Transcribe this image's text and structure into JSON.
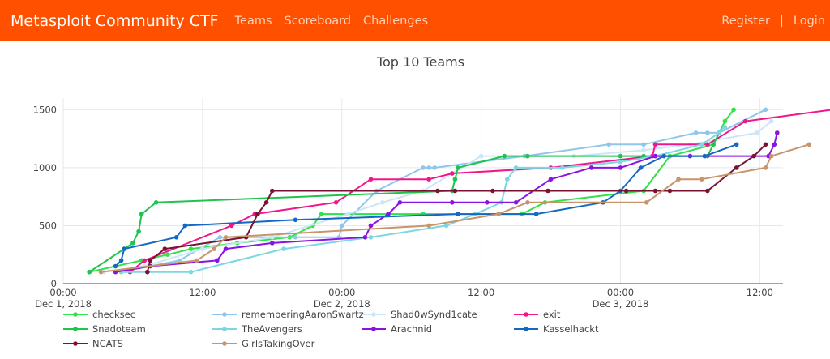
{
  "navbar": {
    "brand": "Metasploit Community CTF",
    "links": [
      "Teams",
      "Scoreboard",
      "Challenges"
    ],
    "right_links": [
      "Register",
      "Login"
    ],
    "separator": "|"
  },
  "colors": {
    "navbar_bg": "#ff5000",
    "brand": "#ffffff",
    "nav_link": "#ffd2b8"
  },
  "chart_data": {
    "type": "line",
    "title": "Top 10 Teams",
    "xlabel": "",
    "ylabel": "",
    "x_axis": {
      "range": [
        "2018-12-01T00:00",
        "2018-12-03T14:00"
      ],
      "ticks": [
        {
          "value": "2018-12-01T00:00",
          "label": "00:00",
          "sublabel": "Dec 1, 2018"
        },
        {
          "value": "2018-12-01T12:00",
          "label": "12:00",
          "sublabel": ""
        },
        {
          "value": "2018-12-02T00:00",
          "label": "00:00",
          "sublabel": "Dec 2, 2018"
        },
        {
          "value": "2018-12-02T12:00",
          "label": "12:00",
          "sublabel": ""
        },
        {
          "value": "2018-12-03T00:00",
          "label": "00:00",
          "sublabel": "Dec 3, 2018"
        },
        {
          "value": "2018-12-03T12:00",
          "label": "12:00",
          "sublabel": ""
        }
      ]
    },
    "y_axis": {
      "range": [
        0,
        1600
      ],
      "ticks": [
        0,
        500,
        1000,
        1500
      ]
    },
    "grid": true,
    "legend": {
      "placement": "bottom",
      "columns": 4
    },
    "series": [
      {
        "name": "checksec",
        "color": "#2fe24a",
        "points": [
          [
            "2018-12-01T02:15",
            100
          ],
          [
            "2018-12-01T06:45",
            200
          ],
          [
            "2018-12-01T09:00",
            250
          ],
          [
            "2018-12-01T11:00",
            300
          ],
          [
            "2018-12-01T15:00",
            350
          ],
          [
            "2018-12-01T19:30",
            400
          ],
          [
            "2018-12-01T21:30",
            500
          ],
          [
            "2018-12-01T22:15",
            600
          ],
          [
            "2018-12-02T04:00",
            600
          ],
          [
            "2018-12-02T07:00",
            600
          ],
          [
            "2018-12-02T15:30",
            600
          ],
          [
            "2018-12-02T17:30",
            700
          ],
          [
            "2018-12-03T02:00",
            800
          ],
          [
            "2018-12-03T04:15",
            1100
          ],
          [
            "2018-12-03T08:00",
            1200
          ],
          [
            "2018-12-03T08:30",
            1300
          ],
          [
            "2018-12-03T09:00",
            1400
          ],
          [
            "2018-12-03T09:45",
            1500
          ]
        ]
      },
      {
        "name": "rememberingAaronSwartz",
        "color": "#8fc7ec",
        "points": [
          [
            "2018-12-01T05:00",
            100
          ],
          [
            "2018-12-01T10:00",
            200
          ],
          [
            "2018-12-01T13:30",
            400
          ],
          [
            "2018-12-01T20:00",
            400
          ],
          [
            "2018-12-01T23:45",
            400
          ],
          [
            "2018-12-02T00:00",
            500
          ],
          [
            "2018-12-02T03:00",
            800
          ],
          [
            "2018-12-02T07:00",
            1000
          ],
          [
            "2018-12-02T07:30",
            1000
          ],
          [
            "2018-12-02T08:00",
            1000
          ],
          [
            "2018-12-02T15:45",
            1100
          ],
          [
            "2018-12-02T23:00",
            1200
          ],
          [
            "2018-12-03T02:00",
            1200
          ],
          [
            "2018-12-03T06:30",
            1300
          ],
          [
            "2018-12-03T07:30",
            1300
          ],
          [
            "2018-12-03T08:30",
            1300
          ],
          [
            "2018-12-03T12:30",
            1500
          ]
        ]
      },
      {
        "name": "Shad0wSynd1cate",
        "color": "#cbe6f6",
        "points": [
          [
            "2018-12-01T03:30",
            100
          ],
          [
            "2018-12-01T07:00",
            150
          ],
          [
            "2018-12-01T12:00",
            300
          ],
          [
            "2018-12-01T18:00",
            400
          ],
          [
            "2018-12-02T00:30",
            600
          ],
          [
            "2018-12-02T03:30",
            700
          ],
          [
            "2018-12-02T07:00",
            800
          ],
          [
            "2018-12-02T12:00",
            1100
          ],
          [
            "2018-12-02T16:00",
            1100
          ],
          [
            "2018-12-02T20:00",
            1100
          ],
          [
            "2018-12-03T02:00",
            1150
          ],
          [
            "2018-12-03T06:00",
            1200
          ],
          [
            "2018-12-03T11:45",
            1300
          ],
          [
            "2018-12-03T13:00",
            1400
          ]
        ]
      },
      {
        "name": "exit",
        "color": "#f0168c",
        "points": [
          [
            "2018-12-01T05:45",
            100
          ],
          [
            "2018-12-01T07:00",
            200
          ],
          [
            "2018-12-01T14:30",
            500
          ],
          [
            "2018-12-01T16:30",
            600
          ],
          [
            "2018-12-01T23:30",
            700
          ],
          [
            "2018-12-02T02:30",
            900
          ],
          [
            "2018-12-02T07:30",
            900
          ],
          [
            "2018-12-02T09:30",
            950
          ],
          [
            "2018-12-02T18:00",
            1000
          ],
          [
            "2018-12-03T02:45",
            1100
          ],
          [
            "2018-12-03T03:00",
            1200
          ],
          [
            "2018-12-03T07:30",
            1200
          ],
          [
            "2018-12-03T10:45",
            1400
          ],
          [
            "2018-12-03T18:15",
            1500
          ]
        ]
      },
      {
        "name": "Snadoteam",
        "color": "#1fc34e",
        "points": [
          [
            "2018-12-01T02:15",
            100
          ],
          [
            "2018-12-01T06:00",
            350
          ],
          [
            "2018-12-01T06:30",
            450
          ],
          [
            "2018-12-01T06:45",
            600
          ],
          [
            "2018-12-01T08:00",
            700
          ],
          [
            "2018-12-02T09:30",
            800
          ],
          [
            "2018-12-02T09:45",
            900
          ],
          [
            "2018-12-02T10:00",
            1000
          ],
          [
            "2018-12-02T14:00",
            1100
          ],
          [
            "2018-12-02T16:00",
            1100
          ],
          [
            "2018-12-03T00:00",
            1100
          ],
          [
            "2018-12-03T02:00",
            1100
          ],
          [
            "2018-12-03T07:30",
            1100
          ],
          [
            "2018-12-03T08:00",
            1200
          ],
          [
            "2018-12-03T08:30",
            1300
          ]
        ]
      },
      {
        "name": "TheAvengers",
        "color": "#7fd6e3",
        "points": [
          [
            "2018-12-01T05:00",
            100
          ],
          [
            "2018-12-01T11:00",
            100
          ],
          [
            "2018-12-01T19:00",
            300
          ],
          [
            "2018-12-02T02:30",
            400
          ],
          [
            "2018-12-02T09:00",
            500
          ],
          [
            "2018-12-02T11:30",
            600
          ],
          [
            "2018-12-02T13:45",
            700
          ],
          [
            "2018-12-02T14:15",
            900
          ],
          [
            "2018-12-02T15:00",
            1000
          ],
          [
            "2018-12-02T19:00",
            1000
          ],
          [
            "2018-12-03T00:00",
            1050
          ],
          [
            "2018-12-03T03:00",
            1100
          ],
          [
            "2018-12-03T07:00",
            1200
          ],
          [
            "2018-12-03T08:30",
            1300
          ],
          [
            "2018-12-03T09:00",
            1350
          ]
        ]
      },
      {
        "name": "Arachnid",
        "color": "#8a12e2",
        "points": [
          [
            "2018-12-01T04:30",
            100
          ],
          [
            "2018-12-01T07:30",
            150
          ],
          [
            "2018-12-01T13:15",
            200
          ],
          [
            "2018-12-01T14:00",
            300
          ],
          [
            "2018-12-01T18:00",
            350
          ],
          [
            "2018-12-02T02:00",
            400
          ],
          [
            "2018-12-02T02:30",
            500
          ],
          [
            "2018-12-02T04:00",
            600
          ],
          [
            "2018-12-02T05:00",
            700
          ],
          [
            "2018-12-02T09:30",
            700
          ],
          [
            "2018-12-02T12:30",
            700
          ],
          [
            "2018-12-02T15:00",
            700
          ],
          [
            "2018-12-02T18:00",
            900
          ],
          [
            "2018-12-02T21:30",
            1000
          ],
          [
            "2018-12-03T00:00",
            1000
          ],
          [
            "2018-12-03T03:00",
            1100
          ],
          [
            "2018-12-03T06:00",
            1100
          ],
          [
            "2018-12-03T12:45",
            1100
          ],
          [
            "2018-12-03T13:15",
            1200
          ],
          [
            "2018-12-03T13:30",
            1300
          ]
        ]
      },
      {
        "name": "Kasselhackt",
        "color": "#1468c4",
        "points": [
          [
            "2018-12-01T04:30",
            150
          ],
          [
            "2018-12-01T05:00",
            200
          ],
          [
            "2018-12-01T05:15",
            300
          ],
          [
            "2018-12-01T09:45",
            400
          ],
          [
            "2018-12-01T10:30",
            500
          ],
          [
            "2018-12-01T20:00",
            550
          ],
          [
            "2018-12-02T10:00",
            600
          ],
          [
            "2018-12-02T16:45",
            600
          ],
          [
            "2018-12-02T22:30",
            700
          ],
          [
            "2018-12-03T00:00",
            800
          ],
          [
            "2018-12-03T01:45",
            1000
          ],
          [
            "2018-12-03T03:45",
            1100
          ],
          [
            "2018-12-03T07:15",
            1100
          ],
          [
            "2018-12-03T10:00",
            1200
          ]
        ]
      },
      {
        "name": "NCATS",
        "color": "#7a1232",
        "points": [
          [
            "2018-12-01T07:15",
            100
          ],
          [
            "2018-12-01T07:30",
            200
          ],
          [
            "2018-12-01T08:45",
            300
          ],
          [
            "2018-12-01T15:45",
            400
          ],
          [
            "2018-12-01T16:45",
            600
          ],
          [
            "2018-12-01T17:30",
            700
          ],
          [
            "2018-12-01T18:00",
            800
          ],
          [
            "2018-12-02T08:15",
            800
          ],
          [
            "2018-12-02T09:45",
            800
          ],
          [
            "2018-12-02T13:00",
            800
          ],
          [
            "2018-12-02T17:45",
            800
          ],
          [
            "2018-12-03T00:30",
            800
          ],
          [
            "2018-12-03T03:00",
            800
          ],
          [
            "2018-12-03T04:15",
            800
          ],
          [
            "2018-12-03T07:30",
            800
          ],
          [
            "2018-12-03T10:00",
            1000
          ],
          [
            "2018-12-03T11:30",
            1100
          ],
          [
            "2018-12-03T12:30",
            1200
          ]
        ]
      },
      {
        "name": "GirlsTakingOver",
        "color": "#c8946a",
        "points": [
          [
            "2018-12-01T03:15",
            100
          ],
          [
            "2018-12-01T11:30",
            200
          ],
          [
            "2018-12-01T13:00",
            300
          ],
          [
            "2018-12-01T14:00",
            400
          ],
          [
            "2018-12-02T07:30",
            500
          ],
          [
            "2018-12-02T13:30",
            600
          ],
          [
            "2018-12-02T16:00",
            700
          ],
          [
            "2018-12-03T02:15",
            700
          ],
          [
            "2018-12-03T05:00",
            900
          ],
          [
            "2018-12-03T07:00",
            900
          ],
          [
            "2018-12-03T12:30",
            1000
          ],
          [
            "2018-12-03T13:00",
            1100
          ],
          [
            "2018-12-03T16:15",
            1200
          ]
        ]
      }
    ]
  }
}
